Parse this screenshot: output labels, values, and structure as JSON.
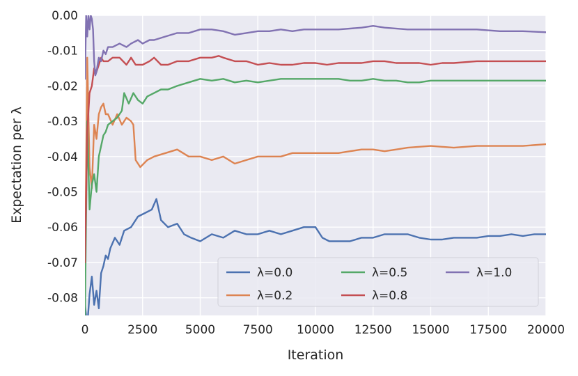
{
  "chart_data": {
    "type": "line",
    "title": "",
    "xlabel": "Iteration",
    "ylabel": "Expectation per λ",
    "xlim": [
      0,
      20000
    ],
    "ylim": [
      -0.085,
      0.0
    ],
    "grid": true,
    "legend_placement": "bottom-right",
    "xticks": [
      0,
      2500,
      5000,
      7500,
      10000,
      12500,
      15000,
      17500,
      20000
    ],
    "xtick_labels": [
      "0",
      "2500",
      "5000",
      "7500",
      "10000",
      "12500",
      "15000",
      "17500",
      "20000"
    ],
    "yticks": [
      0.0,
      -0.01,
      -0.02,
      -0.03,
      -0.04,
      -0.05,
      -0.06,
      -0.07,
      -0.08
    ],
    "ytick_labels": [
      "0.00",
      "-0.01",
      "-0.02",
      "-0.03",
      "-0.04",
      "-0.05",
      "-0.06",
      "-0.07",
      "-0.08"
    ],
    "series": [
      {
        "name": "λ=0.0",
        "color": "#4c72b0",
        "x": [
          0,
          100,
          200,
          300,
          400,
          500,
          600,
          700,
          800,
          900,
          1000,
          1100,
          1300,
          1500,
          1700,
          2000,
          2300,
          2600,
          2900,
          3100,
          3300,
          3600,
          4000,
          4300,
          4600,
          5000,
          5500,
          6000,
          6500,
          7000,
          7500,
          8000,
          8500,
          9000,
          9500,
          10000,
          10300,
          10600,
          11000,
          11500,
          12000,
          12500,
          13000,
          13500,
          14000,
          14500,
          15000,
          15500,
          16000,
          16500,
          17000,
          17500,
          18000,
          18500,
          19000,
          19500,
          20000
        ],
        "y": [
          -0.082,
          -0.088,
          -0.079,
          -0.074,
          -0.082,
          -0.078,
          -0.083,
          -0.073,
          -0.071,
          -0.068,
          -0.069,
          -0.066,
          -0.063,
          -0.065,
          -0.061,
          -0.06,
          -0.057,
          -0.056,
          -0.055,
          -0.052,
          -0.058,
          -0.06,
          -0.059,
          -0.062,
          -0.063,
          -0.064,
          -0.062,
          -0.063,
          -0.061,
          -0.062,
          -0.062,
          -0.061,
          -0.062,
          -0.061,
          -0.06,
          -0.06,
          -0.063,
          -0.064,
          -0.064,
          -0.064,
          -0.063,
          -0.063,
          -0.062,
          -0.062,
          -0.062,
          -0.063,
          -0.0635,
          -0.0635,
          -0.063,
          -0.063,
          -0.063,
          -0.0625,
          -0.0625,
          -0.062,
          -0.0625,
          -0.062,
          -0.062
        ]
      },
      {
        "name": "λ=0.2",
        "color": "#dd8452",
        "x": [
          0,
          100,
          200,
          300,
          400,
          500,
          600,
          700,
          800,
          900,
          1000,
          1200,
          1400,
          1600,
          1800,
          2000,
          2100,
          2200,
          2400,
          2700,
          3000,
          3500,
          4000,
          4500,
          5000,
          5500,
          6000,
          6500,
          7000,
          7500,
          8000,
          8500,
          9000,
          9500,
          10000,
          10500,
          11000,
          11500,
          12000,
          12500,
          13000,
          13500,
          14000,
          15000,
          16000,
          17000,
          18000,
          19000,
          20000
        ],
        "y": [
          -0.075,
          -0.012,
          -0.043,
          -0.049,
          -0.031,
          -0.035,
          -0.028,
          -0.026,
          -0.025,
          -0.028,
          -0.028,
          -0.031,
          -0.028,
          -0.031,
          -0.029,
          -0.03,
          -0.031,
          -0.041,
          -0.043,
          -0.041,
          -0.04,
          -0.039,
          -0.038,
          -0.04,
          -0.04,
          -0.041,
          -0.04,
          -0.042,
          -0.041,
          -0.04,
          -0.04,
          -0.04,
          -0.039,
          -0.039,
          -0.039,
          -0.039,
          -0.039,
          -0.0385,
          -0.038,
          -0.038,
          -0.0385,
          -0.038,
          -0.0375,
          -0.037,
          -0.0375,
          -0.037,
          -0.037,
          -0.037,
          -0.0365
        ]
      },
      {
        "name": "λ=0.5",
        "color": "#55a868",
        "x": [
          0,
          100,
          200,
          300,
          400,
          500,
          600,
          700,
          800,
          900,
          1000,
          1200,
          1400,
          1600,
          1700,
          1900,
          2100,
          2300,
          2500,
          2700,
          3000,
          3300,
          3600,
          4000,
          4500,
          5000,
          5500,
          6000,
          6500,
          7000,
          7500,
          8000,
          8500,
          9000,
          9500,
          10000,
          10500,
          11000,
          11500,
          12000,
          12500,
          13000,
          13500,
          14000,
          14500,
          15000,
          15500,
          16000,
          17000,
          18000,
          19000,
          20000
        ],
        "y": [
          -0.085,
          -0.03,
          -0.055,
          -0.048,
          -0.045,
          -0.05,
          -0.04,
          -0.037,
          -0.034,
          -0.033,
          -0.031,
          -0.03,
          -0.029,
          -0.027,
          -0.022,
          -0.025,
          -0.022,
          -0.024,
          -0.025,
          -0.023,
          -0.022,
          -0.021,
          -0.021,
          -0.02,
          -0.019,
          -0.018,
          -0.0185,
          -0.018,
          -0.019,
          -0.0185,
          -0.019,
          -0.0185,
          -0.018,
          -0.018,
          -0.018,
          -0.018,
          -0.018,
          -0.018,
          -0.0185,
          -0.0185,
          -0.018,
          -0.0185,
          -0.0185,
          -0.019,
          -0.019,
          -0.0185,
          -0.0185,
          -0.0185,
          -0.0185,
          -0.0185,
          -0.0185,
          -0.0185
        ]
      },
      {
        "name": "λ=0.8",
        "color": "#c44e52",
        "x": [
          0,
          100,
          200,
          300,
          400,
          500,
          600,
          700,
          800,
          1000,
          1200,
          1500,
          1800,
          2000,
          2200,
          2500,
          2800,
          3000,
          3300,
          3600,
          4000,
          4500,
          5000,
          5500,
          5800,
          6000,
          6500,
          7000,
          7500,
          8000,
          8500,
          9000,
          9500,
          10000,
          10500,
          11000,
          11500,
          12000,
          12500,
          13000,
          13500,
          14000,
          14500,
          15000,
          15500,
          16000,
          17000,
          18000,
          19000,
          20000
        ],
        "y": [
          -0.07,
          -0.033,
          -0.022,
          -0.02,
          -0.015,
          -0.016,
          -0.014,
          -0.012,
          -0.013,
          -0.013,
          -0.012,
          -0.012,
          -0.014,
          -0.012,
          -0.014,
          -0.014,
          -0.013,
          -0.012,
          -0.014,
          -0.014,
          -0.013,
          -0.013,
          -0.012,
          -0.012,
          -0.0115,
          -0.012,
          -0.013,
          -0.013,
          -0.014,
          -0.0135,
          -0.014,
          -0.014,
          -0.0135,
          -0.0135,
          -0.014,
          -0.0135,
          -0.0135,
          -0.0135,
          -0.013,
          -0.013,
          -0.0135,
          -0.0135,
          -0.0135,
          -0.014,
          -0.0135,
          -0.0135,
          -0.013,
          -0.013,
          -0.013,
          -0.013
        ]
      },
      {
        "name": "λ=1.0",
        "color": "#8172b2",
        "x": [
          0,
          50,
          100,
          150,
          200,
          250,
          300,
          350,
          400,
          450,
          500,
          550,
          600,
          700,
          800,
          900,
          1000,
          1200,
          1500,
          1800,
          2000,
          2300,
          2500,
          2800,
          3000,
          3500,
          4000,
          4500,
          5000,
          5500,
          6000,
          6500,
          7000,
          7500,
          8000,
          8500,
          9000,
          9500,
          10000,
          11000,
          12000,
          12500,
          13000,
          14000,
          15000,
          16000,
          17000,
          18000,
          19000,
          20000
        ],
        "y": [
          -0.018,
          0.0,
          -0.006,
          0.0,
          -0.004,
          0.0,
          -0.001,
          -0.004,
          -0.013,
          -0.017,
          -0.016,
          -0.014,
          -0.012,
          -0.013,
          -0.01,
          -0.011,
          -0.009,
          -0.009,
          -0.008,
          -0.009,
          -0.008,
          -0.007,
          -0.008,
          -0.007,
          -0.007,
          -0.006,
          -0.005,
          -0.005,
          -0.004,
          -0.004,
          -0.0045,
          -0.0055,
          -0.005,
          -0.0045,
          -0.0045,
          -0.004,
          -0.0045,
          -0.004,
          -0.004,
          -0.004,
          -0.0035,
          -0.003,
          -0.0035,
          -0.004,
          -0.004,
          -0.004,
          -0.004,
          -0.0045,
          -0.0045,
          -0.0048
        ]
      }
    ]
  }
}
